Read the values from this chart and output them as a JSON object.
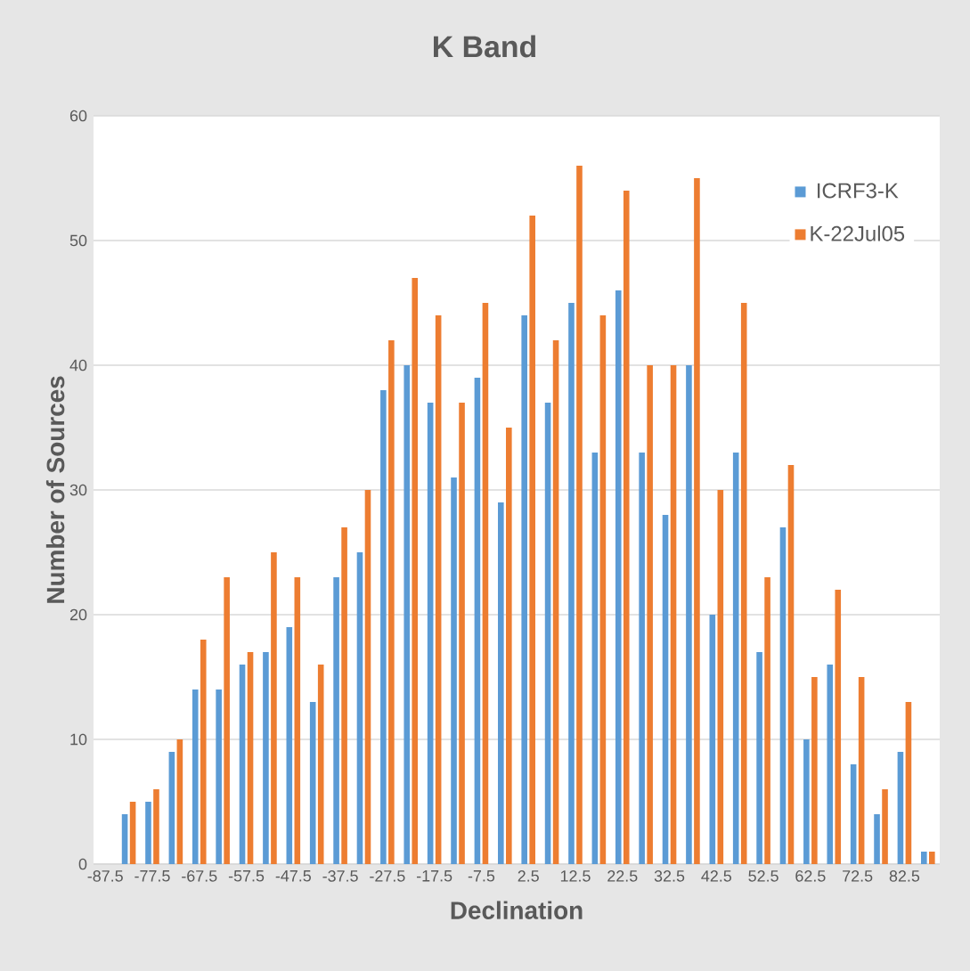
{
  "chart_data": {
    "type": "bar",
    "title": "K Band",
    "xlabel": "Declination",
    "ylabel": "Number of Sources",
    "categories": [
      "-87.5",
      null,
      "-77.5",
      null,
      "-67.5",
      null,
      "-57.5",
      null,
      "-47.5",
      null,
      "-37.5",
      null,
      "-27.5",
      null,
      "-17.5",
      null,
      "-7.5",
      null,
      "2.5",
      null,
      "12.5",
      null,
      "22.5",
      null,
      "32.5",
      null,
      "42.5",
      null,
      "52.5",
      null,
      "62.5",
      null,
      "72.5",
      null,
      "82.5",
      null
    ],
    "series": [
      {
        "name": "ICRF3-K",
        "color": "#5b9bd5",
        "values": [
          0,
          4,
          5,
          9,
          14,
          14,
          16,
          17,
          19,
          13,
          23,
          25,
          38,
          40,
          37,
          31,
          39,
          29,
          44,
          37,
          45,
          33,
          46,
          33,
          28,
          40,
          20,
          33,
          17,
          27,
          10,
          16,
          8,
          4,
          9,
          1
        ]
      },
      {
        "name": "K-22Jul05",
        "color": "#ed7d31",
        "values": [
          0,
          5,
          6,
          10,
          18,
          23,
          17,
          25,
          23,
          16,
          27,
          30,
          42,
          47,
          44,
          37,
          45,
          35,
          52,
          42,
          56,
          44,
          54,
          40,
          40,
          55,
          30,
          45,
          23,
          32,
          15,
          22,
          15,
          6,
          13,
          1
        ]
      }
    ],
    "ylim": [
      0,
      60
    ],
    "yticks": [
      0,
      10,
      20,
      30,
      40,
      50,
      60
    ],
    "grid": "y",
    "legend": "top right"
  }
}
